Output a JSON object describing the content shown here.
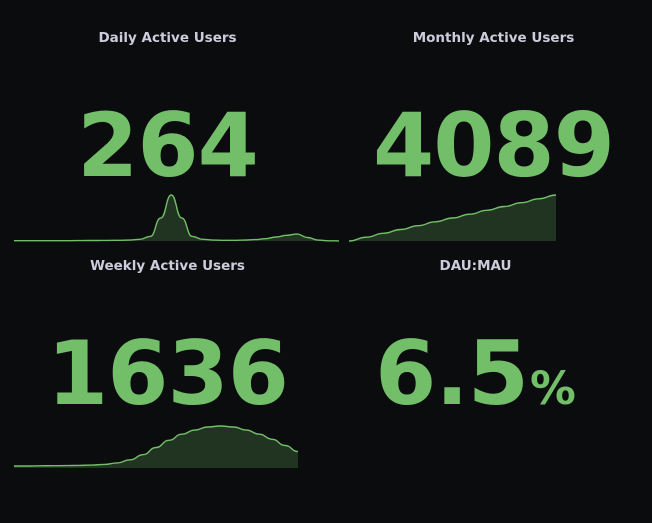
{
  "panels": {
    "dau": {
      "title": "Daily Active Users",
      "value": "264",
      "color": "#73bf69",
      "sparkline": [
        0.3,
        0.3,
        0.3,
        0.3,
        0.3,
        0.3,
        0.35,
        0.4,
        0.45,
        0.5,
        0.6,
        0.8,
        1.5,
        4,
        20,
        40,
        20,
        4,
        1.5,
        0.8,
        0.6,
        0.6,
        0.8,
        1.2,
        2,
        3.5,
        5,
        6,
        3,
        0.8,
        0.2,
        0.1
      ]
    },
    "mau": {
      "title": "Monthly Active Users",
      "value": "4089",
      "color": "#73bf69",
      "sparkline": [
        0,
        4,
        8,
        12,
        16,
        20,
        24,
        28,
        32,
        36,
        40,
        44,
        48
      ]
    },
    "wau": {
      "title": "Weekly Active Users",
      "value": "1636",
      "color": "#73bf69",
      "sparkline": [
        2,
        2,
        2.1,
        2.2,
        2.3,
        2.5,
        2.8,
        3.5,
        5,
        8,
        13,
        20,
        27,
        33,
        37,
        40,
        41,
        40,
        37,
        33,
        28,
        22,
        16
      ]
    },
    "ratio": {
      "title": "DAU:MAU",
      "value": "6.5",
      "unit": "%",
      "color": "#73bf69"
    }
  }
}
